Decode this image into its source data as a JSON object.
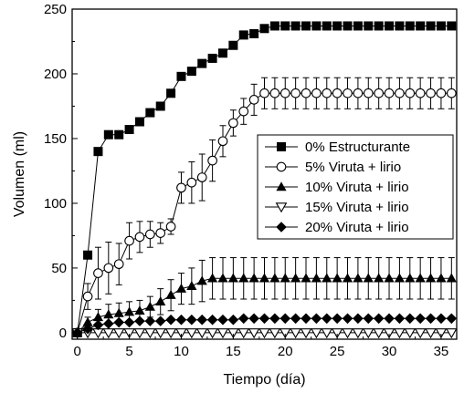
{
  "chart_data": {
    "type": "line",
    "xlabel": "Tiempo (día)",
    "ylabel": "Volumen (ml)",
    "xlim": [
      -0.5,
      36.5
    ],
    "ylim": [
      -5,
      250
    ],
    "xticks": [
      0,
      5,
      10,
      15,
      20,
      25,
      30,
      35
    ],
    "yticks": [
      0,
      50,
      100,
      150,
      200,
      250
    ],
    "grid": false,
    "legend_position": "center-right",
    "series": [
      {
        "name": "0% Estructurante",
        "marker": "filled-square",
        "color": "#000000",
        "x": [
          0,
          1,
          2,
          3,
          4,
          5,
          6,
          7,
          8,
          9,
          10,
          11,
          12,
          13,
          14,
          15,
          16,
          17,
          18,
          19,
          20,
          21,
          22,
          23,
          24,
          25,
          26,
          27,
          28,
          29,
          30,
          31,
          32,
          33,
          34,
          35,
          36
        ],
        "y": [
          0,
          60,
          140,
          153,
          153,
          157,
          163,
          170,
          175,
          185,
          198,
          202,
          208,
          212,
          216,
          222,
          230,
          231,
          235,
          237,
          237,
          237,
          237,
          237,
          237,
          237,
          237,
          237,
          237,
          237,
          237,
          237,
          237,
          237,
          237,
          237,
          237
        ]
      },
      {
        "name": "5% Viruta + lirio",
        "marker": "open-circle",
        "color": "#000000",
        "x": [
          0,
          1,
          2,
          3,
          4,
          5,
          6,
          7,
          8,
          9,
          10,
          11,
          12,
          13,
          14,
          15,
          16,
          17,
          18,
          19,
          20,
          21,
          22,
          23,
          24,
          25,
          26,
          27,
          28,
          29,
          30,
          31,
          32,
          33,
          34,
          35,
          36
        ],
        "y": [
          0,
          28,
          46,
          50,
          53,
          71,
          74,
          76,
          77,
          82,
          112,
          116,
          120,
          133,
          148,
          162,
          171,
          180,
          185,
          185,
          185,
          185,
          185,
          185,
          185,
          185,
          185,
          185,
          185,
          185,
          185,
          185,
          185,
          185,
          185,
          185,
          185
        ],
        "err": [
          0,
          10,
          20,
          20,
          16,
          14,
          12,
          10,
          8,
          6,
          12,
          16,
          18,
          16,
          12,
          10,
          10,
          12,
          12,
          12,
          12,
          12,
          12,
          12,
          12,
          12,
          12,
          12,
          12,
          12,
          12,
          12,
          12,
          12,
          12,
          12,
          12
        ]
      },
      {
        "name": "10% Viruta + lirio",
        "marker": "filled-triangle-up",
        "color": "#000000",
        "x": [
          0,
          1,
          2,
          3,
          4,
          5,
          6,
          7,
          8,
          9,
          10,
          11,
          12,
          13,
          14,
          15,
          16,
          17,
          18,
          19,
          20,
          21,
          22,
          23,
          24,
          25,
          26,
          27,
          28,
          29,
          30,
          31,
          32,
          33,
          34,
          35,
          36
        ],
        "y": [
          0,
          8,
          12,
          14,
          15,
          16,
          17,
          20,
          24,
          29,
          34,
          36,
          40,
          42,
          42,
          42,
          42,
          42,
          42,
          42,
          42,
          42,
          42,
          42,
          42,
          42,
          42,
          42,
          42,
          42,
          42,
          42,
          42,
          42,
          42,
          42,
          42
        ],
        "err": [
          0,
          4,
          6,
          8,
          8,
          8,
          8,
          8,
          10,
          12,
          12,
          14,
          16,
          16,
          16,
          16,
          16,
          16,
          16,
          16,
          16,
          16,
          16,
          16,
          16,
          16,
          16,
          16,
          16,
          16,
          16,
          16,
          16,
          16,
          16,
          16,
          16
        ]
      },
      {
        "name": "15% Viruta + lirio",
        "marker": "open-triangle-down",
        "color": "#000000",
        "x": [
          0,
          1,
          2,
          3,
          4,
          5,
          6,
          7,
          8,
          9,
          10,
          11,
          12,
          13,
          14,
          15,
          16,
          17,
          18,
          19,
          20,
          21,
          22,
          23,
          24,
          25,
          26,
          27,
          28,
          29,
          30,
          31,
          32,
          33,
          34,
          35,
          36
        ],
        "y": [
          0,
          0,
          0,
          0,
          0,
          0,
          0,
          0,
          0,
          0,
          0,
          0,
          0,
          0,
          0,
          0,
          0,
          0,
          0,
          0,
          0,
          0,
          0,
          0,
          0,
          0,
          0,
          0,
          0,
          0,
          0,
          0,
          0,
          0,
          0,
          0,
          0
        ]
      },
      {
        "name": "20% Viruta + lirio",
        "marker": "filled-diamond",
        "color": "#000000",
        "x": [
          0,
          1,
          2,
          3,
          4,
          5,
          6,
          7,
          8,
          9,
          10,
          11,
          12,
          13,
          14,
          15,
          16,
          17,
          18,
          19,
          20,
          21,
          22,
          23,
          24,
          25,
          26,
          27,
          28,
          29,
          30,
          31,
          32,
          33,
          34,
          35,
          36
        ],
        "y": [
          0,
          3,
          6,
          7,
          8,
          8,
          9,
          9,
          9,
          10,
          10,
          10,
          10,
          10,
          10,
          10,
          11,
          11,
          11,
          11,
          11,
          11,
          11,
          11,
          11,
          11,
          11,
          11,
          11,
          11,
          11,
          11,
          11,
          11,
          11,
          11,
          11
        ]
      }
    ]
  }
}
